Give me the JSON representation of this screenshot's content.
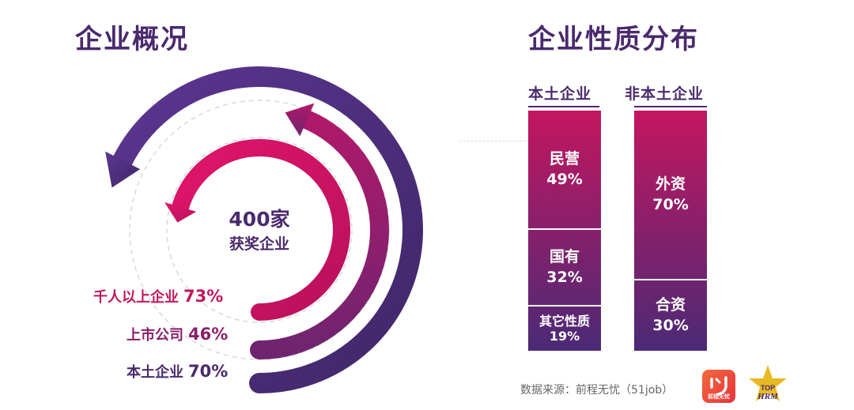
{
  "left": {
    "title": "企业概况",
    "center": {
      "line1": "400家",
      "line2": "获奖企业"
    }
  },
  "right": {
    "title": "企业性质分布",
    "col_local": "本土企业",
    "col_foreign": "非本土企业",
    "source": "数据来源：前程无忧（51job）",
    "logo_51_caption": "前程无忧",
    "logo_top": {
      "line1": "TOP",
      "line2": "HRM"
    }
  },
  "colors": {
    "dark_purple": "#4a2a6e",
    "magenta": "#c0175e",
    "outer_ring": "#4e2f78",
    "middle_ring": "#8a1f6a",
    "inner_ring": "#d11567"
  },
  "chart_data": [
    {
      "type": "radial_bar",
      "series": [
        {
          "name": "千人以上企业",
          "value": 73,
          "label": "73%"
        },
        {
          "name": "上市公司",
          "value": 46,
          "label": "46%"
        },
        {
          "name": "本土企业",
          "value": 70,
          "label": "70%"
        }
      ],
      "unit": "%"
    },
    {
      "type": "bar",
      "stacked": true,
      "categories": [
        "本土企业",
        "非本土企业"
      ],
      "series": [
        {
          "category": "本土企业",
          "segments": [
            {
              "name": "民营",
              "value": 49,
              "label": "49%"
            },
            {
              "name": "国有",
              "value": 32,
              "label": "32%"
            },
            {
              "name": "其它性质",
              "value": 19,
              "label": "19%"
            }
          ]
        },
        {
          "category": "非本土企业",
          "segments": [
            {
              "name": "外资",
              "value": 70,
              "label": "70%"
            },
            {
              "name": "合资",
              "value": 30,
              "label": "30%"
            }
          ]
        }
      ],
      "unit": "%"
    }
  ]
}
